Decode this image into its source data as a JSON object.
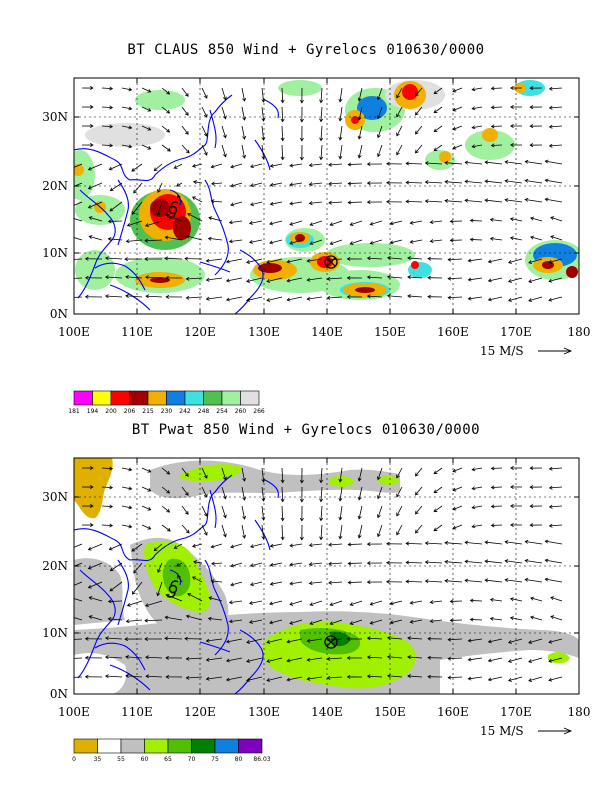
{
  "panels": [
    {
      "title": "BT CLAUS 850 Wind + Gyrelocs 010630/0000",
      "lat_labels": [
        "30N",
        "20N",
        "10N",
        "0N"
      ],
      "lon_labels": [
        "100E",
        "110E",
        "120E",
        "130E",
        "140E",
        "150E",
        "160E",
        "170E",
        "180"
      ],
      "wind_reference": "15 M/S",
      "colorbar": {
        "labels": [
          "181",
          "194",
          "200",
          "206",
          "215",
          "230",
          "242",
          "248",
          "254",
          "260",
          "266"
        ],
        "colors": [
          "#ff00ff",
          "#ffff00",
          "#ff0000",
          "#a00000",
          "#f0b000",
          "#1080e0",
          "#40e0e0",
          "#50c050",
          "#a0f0a0",
          "#e0e0e0"
        ]
      }
    },
    {
      "title": "BT Pwat 850 Wind + Gyrelocs 010630/0000",
      "lat_labels": [
        "30N",
        "20N",
        "10N",
        "0N"
      ],
      "lon_labels": [
        "100E",
        "110E",
        "120E",
        "130E",
        "140E",
        "150E",
        "160E",
        "170E",
        "180"
      ],
      "wind_reference": "15 M/S",
      "colorbar": {
        "labels": [
          "0",
          "35",
          "55",
          "60",
          "65",
          "70",
          "75",
          "80",
          "86.03"
        ],
        "colors": [
          "#e0b000",
          "#ffffff",
          "#c0c0c0",
          "#a0f000",
          "#50c000",
          "#008000",
          "#1080e0",
          "#8000c0"
        ]
      }
    }
  ],
  "symbols": {
    "typhoon": "typhoon-symbol-icon",
    "gyre": "gyre-circle-x-icon"
  }
}
